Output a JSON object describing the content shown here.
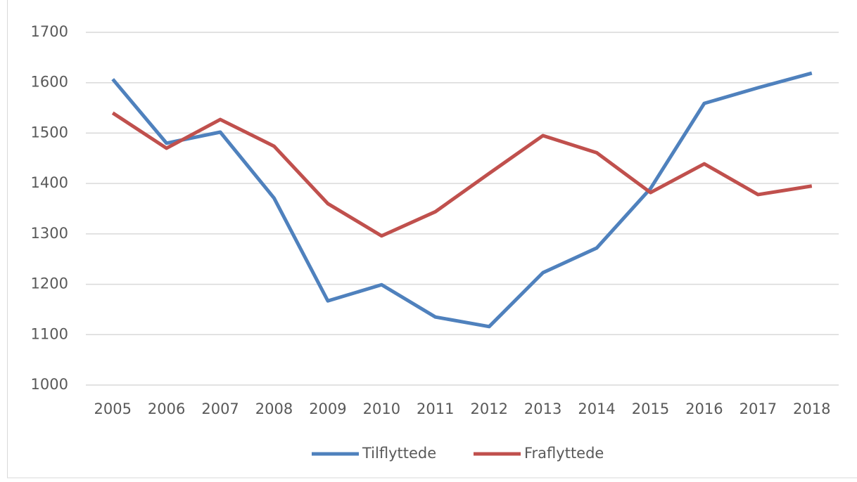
{
  "chart_data": {
    "type": "line",
    "categories": [
      "2005",
      "2006",
      "2007",
      "2008",
      "2009",
      "2010",
      "2011",
      "2012",
      "2013",
      "2014",
      "2015",
      "2016",
      "2017",
      "2018"
    ],
    "series": [
      {
        "name": "Tilflyttede",
        "color": "#4f81bd",
        "values": [
          1607,
          1480,
          1502,
          1371,
          1167,
          1199,
          1135,
          1116,
          1223,
          1272,
          1390,
          1559,
          1590,
          1619
        ]
      },
      {
        "name": "Fraflyttede",
        "color": "#c0504d",
        "values": [
          1540,
          1470,
          1527,
          1474,
          1360,
          1296,
          1344,
          1420,
          1495,
          1461,
          1382,
          1439,
          1378,
          1395
        ]
      }
    ],
    "ylim": [
      1000,
      1700
    ],
    "yticks": [
      1000,
      1100,
      1200,
      1300,
      1400,
      1500,
      1600,
      1700
    ],
    "grid": true,
    "legend": "bottom"
  }
}
